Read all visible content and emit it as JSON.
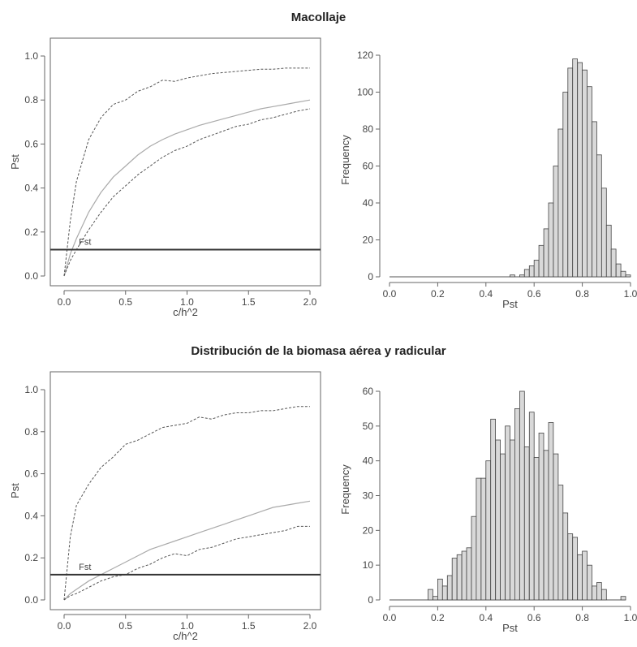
{
  "titles": {
    "top": "Macollaje",
    "bottom": "Distribución de la biomasa aérea y radicular"
  },
  "chart_data": [
    {
      "type": "line",
      "section": "Macollaje",
      "xlabel": "c/h^2",
      "ylabel": "Pst",
      "xlim": [
        0,
        2.0
      ],
      "ylim": [
        0,
        1.0
      ],
      "xticks": [
        "0.0",
        "0.5",
        "1.0",
        "1.5",
        "2.0"
      ],
      "yticks": [
        "0.0",
        "0.2",
        "0.4",
        "0.6",
        "0.8",
        "1.0"
      ],
      "grid": false,
      "x": [
        0,
        0.05,
        0.1,
        0.2,
        0.3,
        0.4,
        0.5,
        0.6,
        0.7,
        0.8,
        0.9,
        1.0,
        1.1,
        1.2,
        1.3,
        1.4,
        1.5,
        1.6,
        1.7,
        1.8,
        1.9,
        2.0
      ],
      "series": [
        {
          "style": "solid",
          "values": [
            0.0,
            0.1,
            0.17,
            0.29,
            0.38,
            0.45,
            0.5,
            0.55,
            0.59,
            0.62,
            0.645,
            0.665,
            0.685,
            0.7,
            0.715,
            0.73,
            0.745,
            0.76,
            0.77,
            0.78,
            0.79,
            0.8
          ]
        },
        {
          "style": "dashed",
          "values": [
            0.0,
            0.25,
            0.43,
            0.62,
            0.72,
            0.78,
            0.8,
            0.84,
            0.86,
            0.89,
            0.885,
            0.9,
            0.91,
            0.92,
            0.925,
            0.93,
            0.935,
            0.94,
            0.94,
            0.945,
            0.945,
            0.945
          ]
        },
        {
          "style": "dashed",
          "values": [
            0.0,
            0.07,
            0.12,
            0.21,
            0.29,
            0.36,
            0.41,
            0.46,
            0.5,
            0.54,
            0.57,
            0.59,
            0.62,
            0.64,
            0.66,
            0.68,
            0.69,
            0.71,
            0.72,
            0.735,
            0.75,
            0.76
          ]
        }
      ],
      "hline": {
        "y": 0.12,
        "label": "Fst"
      }
    },
    {
      "type": "bar",
      "section": "Macollaje",
      "xlabel": "Pst",
      "ylabel": "Frequency",
      "xlim": [
        0,
        1.0
      ],
      "ylim": [
        0,
        120
      ],
      "xticks": [
        "0.0",
        "0.2",
        "0.4",
        "0.6",
        "0.8",
        "1.0"
      ],
      "yticks": [
        "0",
        "20",
        "40",
        "60",
        "80",
        "100",
        "120"
      ],
      "bin_width": 0.02,
      "bin_start": 0.5,
      "values": [
        1,
        0,
        1,
        4,
        6,
        9,
        17,
        26,
        40,
        60,
        80,
        100,
        113,
        118,
        116,
        112,
        103,
        84,
        66,
        48,
        28,
        15,
        7,
        3,
        1
      ]
    },
    {
      "type": "line",
      "section": "Distribución de la biomasa aérea y radicular",
      "xlabel": "c/h^2",
      "ylabel": "Pst",
      "xlim": [
        0,
        2.0
      ],
      "ylim": [
        0,
        1.0
      ],
      "xticks": [
        "0.0",
        "0.5",
        "1.0",
        "1.5",
        "2.0"
      ],
      "yticks": [
        "0.0",
        "0.2",
        "0.4",
        "0.6",
        "0.8",
        "1.0"
      ],
      "grid": false,
      "x": [
        0,
        0.05,
        0.1,
        0.2,
        0.3,
        0.4,
        0.5,
        0.6,
        0.7,
        0.8,
        0.9,
        1.0,
        1.1,
        1.2,
        1.3,
        1.4,
        1.5,
        1.6,
        1.7,
        1.8,
        1.9,
        2.0
      ],
      "series": [
        {
          "style": "solid",
          "values": [
            0.0,
            0.03,
            0.05,
            0.09,
            0.12,
            0.15,
            0.18,
            0.21,
            0.24,
            0.26,
            0.28,
            0.3,
            0.32,
            0.34,
            0.36,
            0.38,
            0.4,
            0.42,
            0.44,
            0.45,
            0.46,
            0.47
          ]
        },
        {
          "style": "dashed",
          "values": [
            0.0,
            0.3,
            0.45,
            0.55,
            0.63,
            0.68,
            0.74,
            0.76,
            0.79,
            0.82,
            0.83,
            0.84,
            0.87,
            0.86,
            0.88,
            0.89,
            0.89,
            0.9,
            0.9,
            0.91,
            0.92,
            0.92
          ]
        },
        {
          "style": "dashed",
          "values": [
            0.0,
            0.02,
            0.03,
            0.06,
            0.09,
            0.11,
            0.12,
            0.15,
            0.17,
            0.2,
            0.22,
            0.21,
            0.24,
            0.25,
            0.27,
            0.29,
            0.3,
            0.31,
            0.32,
            0.33,
            0.35,
            0.35
          ]
        }
      ],
      "hline": {
        "y": 0.12,
        "label": "Fst"
      }
    },
    {
      "type": "bar",
      "section": "Distribución de la biomasa aérea y radicular",
      "xlabel": "Pst",
      "ylabel": "Frequency",
      "xlim": [
        0,
        1.0
      ],
      "ylim": [
        0,
        60
      ],
      "xticks": [
        "0.0",
        "0.2",
        "0.4",
        "0.6",
        "0.8",
        "1.0"
      ],
      "yticks": [
        "0",
        "10",
        "20",
        "30",
        "40",
        "50",
        "60"
      ],
      "bin_width": 0.02,
      "bin_start": 0.16,
      "values": [
        3,
        1,
        6,
        4,
        7,
        12,
        13,
        14,
        15,
        24,
        35,
        35,
        40,
        52,
        46,
        42,
        50,
        46,
        55,
        60,
        44,
        54,
        41,
        48,
        43,
        51,
        42,
        33,
        25,
        19,
        18,
        13,
        14,
        10,
        4,
        5,
        3,
        0,
        0,
        0,
        1
      ]
    }
  ]
}
